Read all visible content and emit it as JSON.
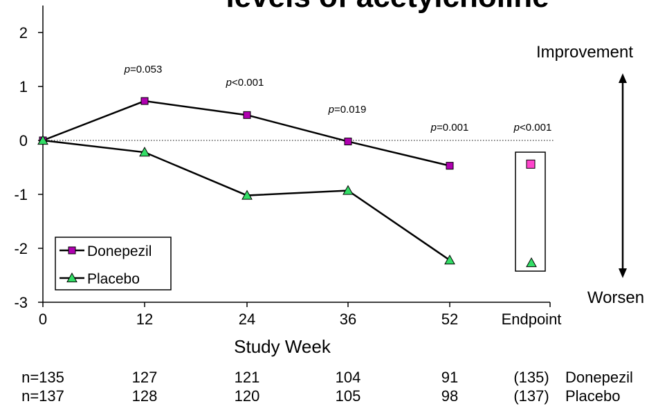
{
  "chart_data": {
    "type": "line",
    "title": "levels of acetylcholine",
    "xlabel": "Study Week",
    "ylabel": "",
    "ylim": [
      -3,
      2
    ],
    "yticks": [
      2,
      1,
      0,
      -1,
      -2,
      -3
    ],
    "x_categories": [
      "0",
      "12",
      "24",
      "36",
      "52",
      "Endpoint"
    ],
    "series": [
      {
        "name": "Donepezil",
        "color": "#b000b0",
        "values": [
          0.0,
          0.73,
          0.47,
          -0.02,
          -0.47
        ],
        "endpoint": -0.44
      },
      {
        "name": "Placebo",
        "color": "#33dd66",
        "values": [
          0.0,
          -0.22,
          -1.02,
          -0.93,
          -2.22
        ],
        "endpoint": -2.27
      }
    ],
    "p_values": [
      "0.053",
      "<0.001",
      "0.019",
      "0.001",
      "<0.001"
    ],
    "annotations": {
      "top": "Improvement",
      "bottom": "Worsen"
    },
    "n_table": {
      "rows": [
        {
          "values": [
            "n=135",
            "127",
            "121",
            "104",
            "91",
            "(135)"
          ],
          "label": "Donepezil"
        },
        {
          "values": [
            "n=137",
            "128",
            "120",
            "105",
            "98",
            "(137)"
          ],
          "label": "Placebo"
        }
      ]
    },
    "reference_line": 0,
    "legend_position": "bottom-left"
  }
}
